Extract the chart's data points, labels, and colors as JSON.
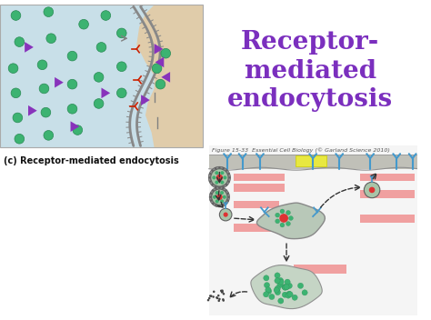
{
  "title": "Receptor-\nmediated\nendocytosis",
  "title_color": "#7B2FBE",
  "subtitle": "(c) Receptor-mediated endocytosis",
  "figure_caption": "Figure 15-33  Essential Cell Biology (© Garland Science 2010)",
  "bg_color": "#ffffff",
  "top_left_bg": "#c8dfe8",
  "top_left_tan": "#e0ccaa",
  "pink_rect_color": "#f0a0a0",
  "yellow_rect_color": "#e8e840",
  "green_dot_color": "#3cb371",
  "green_dot_edge": "#2a8a55",
  "purple_tri_color": "#8833bb",
  "red_arrow_color": "#cc2200",
  "membrane_gray": "#b0b0b0",
  "membrane_dark": "#888888",
  "vesicle_outer": "#a8c4a8",
  "vesicle_inner": "#dd3333",
  "endosome_color": "#b8c8b8",
  "lyso_color": "#c0d0c0",
  "receptor_color": "#4499cc",
  "arrow_color": "#333333",
  "bottom_panel_bg": "#f5f5f5",
  "mem_band_color": "#c0c0b8"
}
